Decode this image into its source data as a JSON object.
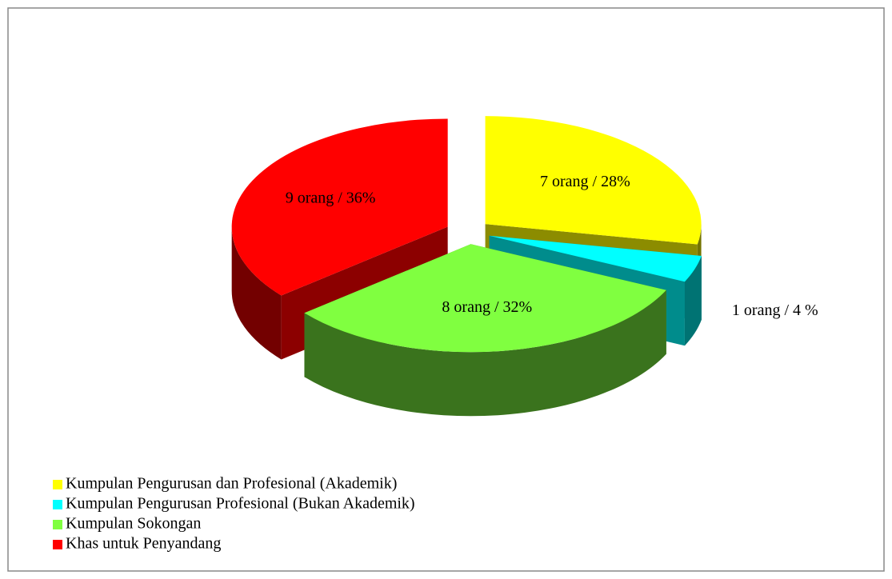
{
  "chart_data": {
    "type": "pie",
    "categories": [
      "Kumpulan Pengurusan dan Profesional (Akademik)",
      "Kumpulan Pengurusan Profesional (Bukan Akademik)",
      "Kumpulan Sokongan",
      "Khas untuk Penyandang"
    ],
    "values": [
      7,
      1,
      8,
      9
    ],
    "value_labels": [
      "7 orang / 28%",
      "1 orang / 4 %",
      "8 orang / 32%",
      "9 orang / 36%"
    ],
    "colors": [
      "#ffff00",
      "#00ffff",
      "#80ff40",
      "#ff0000"
    ],
    "legend": "bottom-left"
  }
}
